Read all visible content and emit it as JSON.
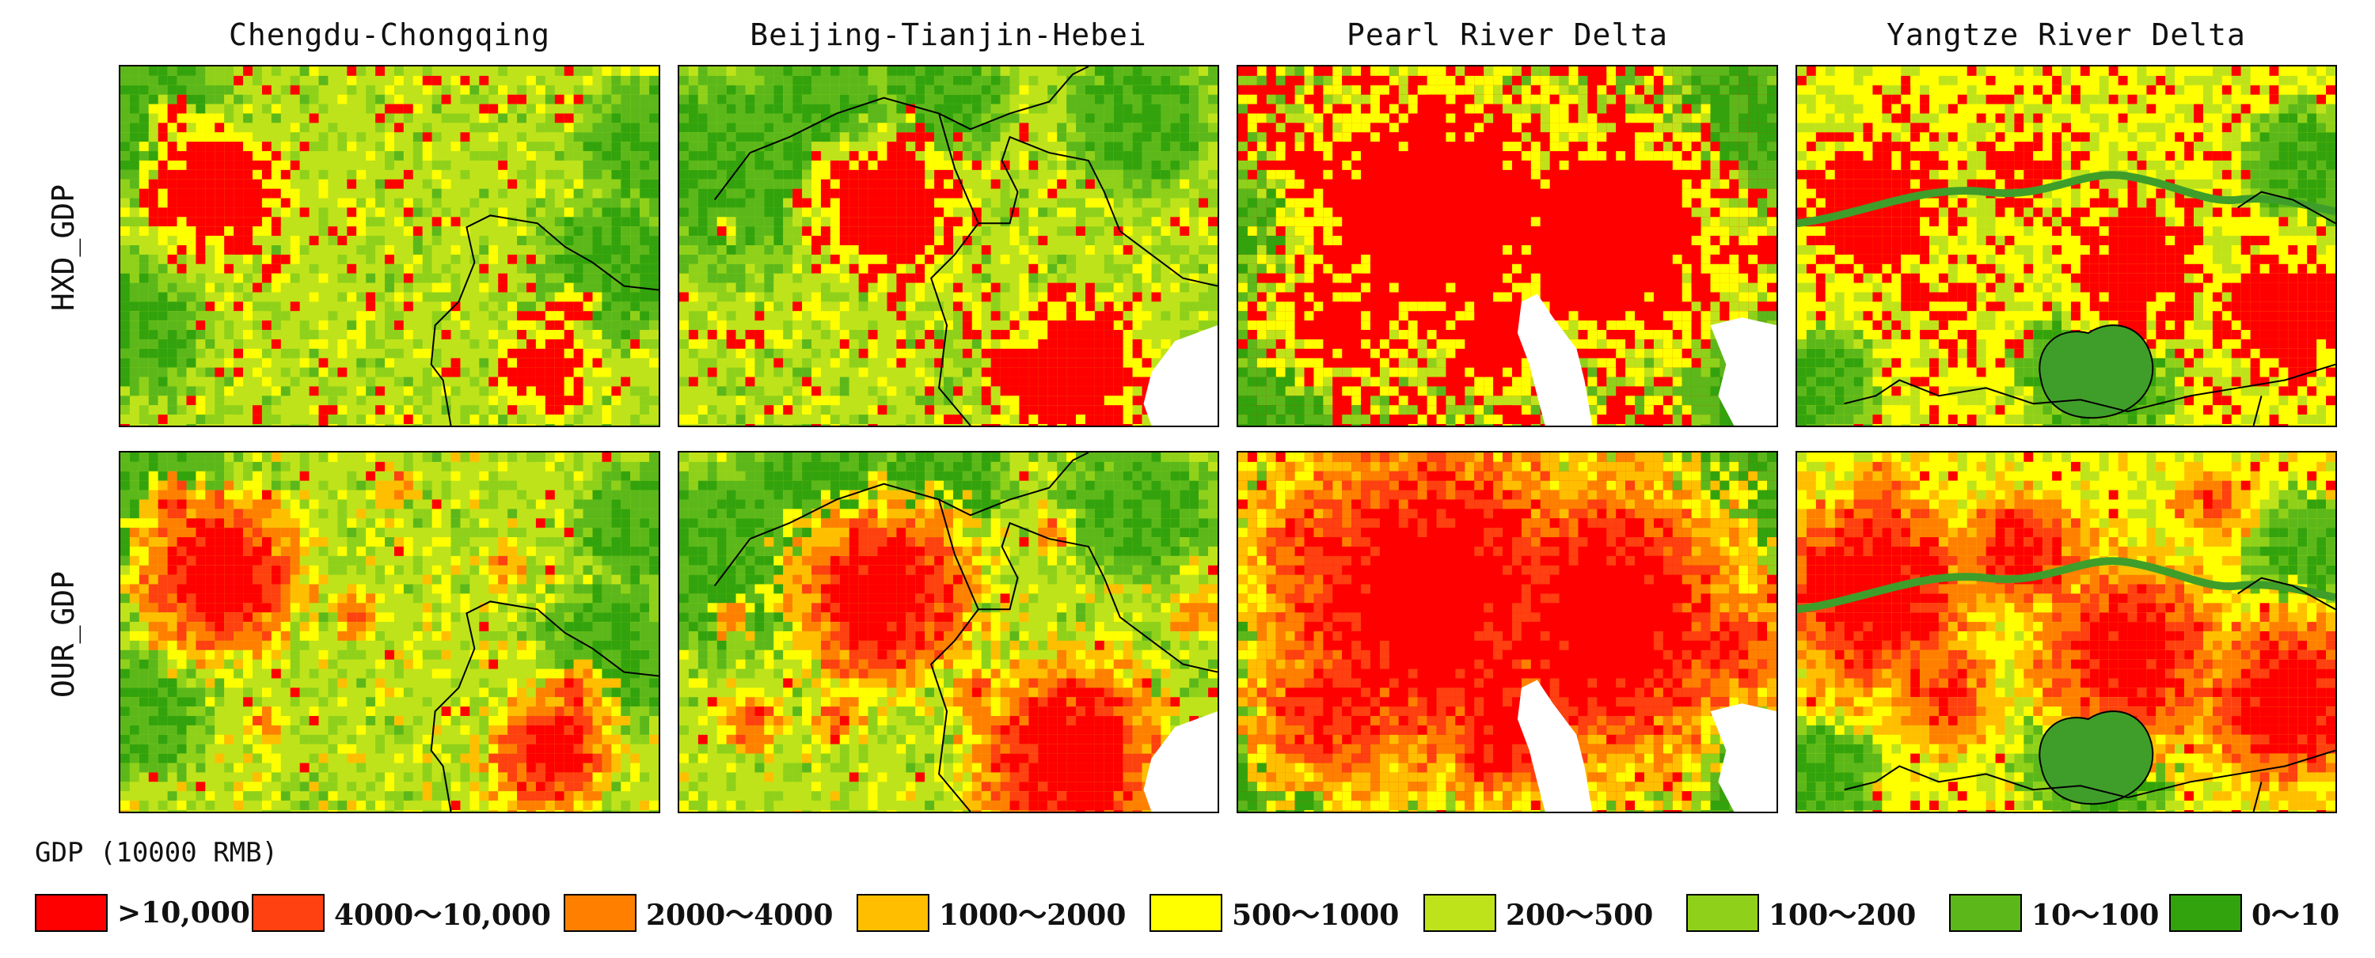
{
  "figure": {
    "columns": [
      {
        "title": "Chengdu-Chongqing"
      },
      {
        "title": "Beijing-Tianjin-Hebei"
      },
      {
        "title": "Pearl River Delta"
      },
      {
        "title": "Yangtze River Delta"
      }
    ],
    "rows": [
      {
        "label": "HXD_GDP"
      },
      {
        "label": "OUR_GDP"
      }
    ]
  },
  "legend": {
    "title": "GDP (10000 RMB)",
    "classes": [
      {
        "label": ">10,000",
        "color": "#ff0000"
      },
      {
        "label": "4000～10,000",
        "color": "#ff4010"
      },
      {
        "label": "2000～4000",
        "color": "#ff8000"
      },
      {
        "label": "1000～2000",
        "color": "#ffbf00"
      },
      {
        "label": "500～1000",
        "color": "#ffff00"
      },
      {
        "label": "200～500",
        "color": "#bfe31a"
      },
      {
        "label": "100～200",
        "color": "#8fd11a"
      },
      {
        "label": "10～100",
        "color": "#5cb81a"
      },
      {
        "label": "0～10",
        "color": "#33a30d"
      }
    ]
  },
  "map_colors": {
    "water": "#ffffff",
    "boundary": "#000000",
    "river": "#3f9e2a"
  }
}
